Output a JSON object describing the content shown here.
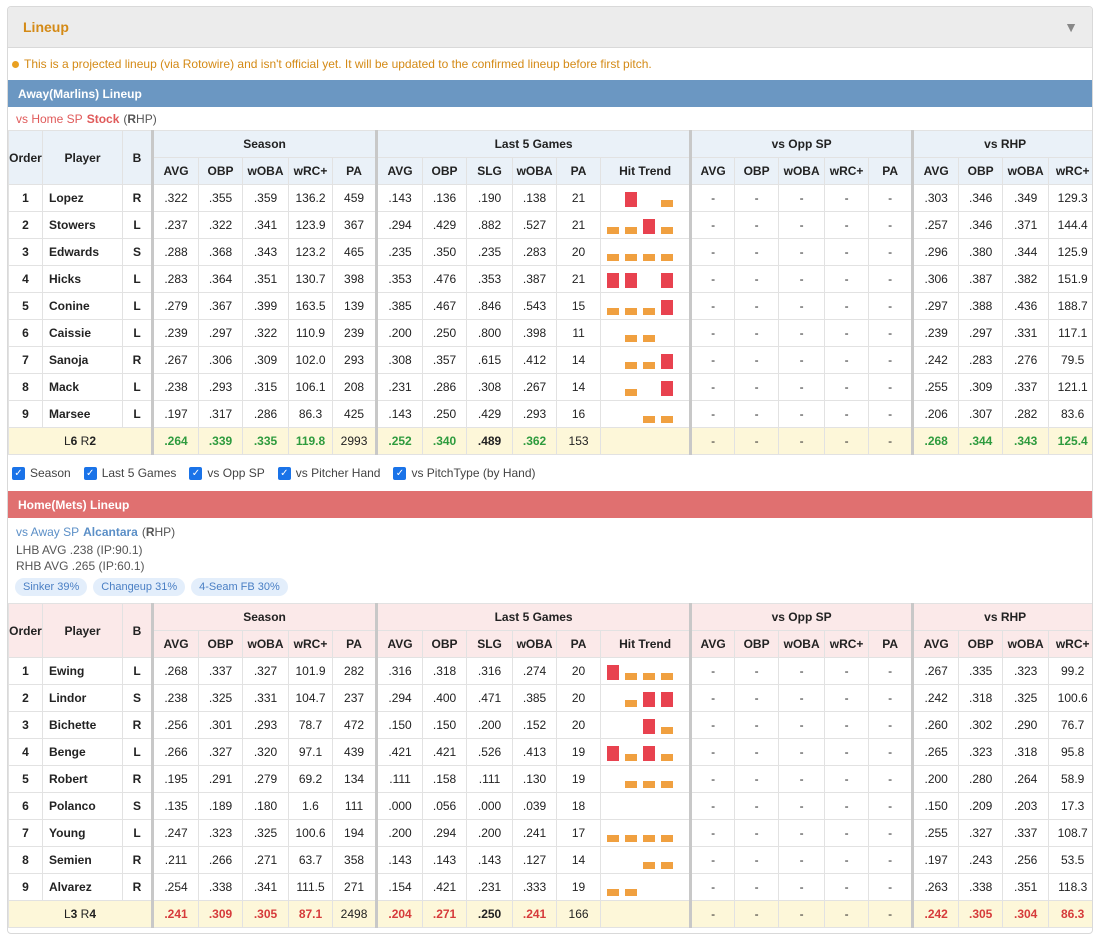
{
  "panel": {
    "title": "Lineup",
    "toggle_icon": "▼"
  },
  "notice": "This is a projected lineup (via Rotowire) and isn't official yet. It will be updated to the confirmed lineup before first pitch.",
  "colors": {
    "accent": "#d48a16",
    "away": "#6b97c2",
    "home": "#e07070",
    "green": "#2e9b3e",
    "red": "#d63b3b",
    "bar_red": "#e8424f",
    "bar_orange": "#f0a040",
    "checkbox": "#1a73e8"
  },
  "group_headers": {
    "season": "Season",
    "last5": "Last 5 Games",
    "opp_sp": "vs Opp SP",
    "vs_hand": "vs RHP"
  },
  "col_headers": {
    "order": "Order",
    "player": "Player",
    "b": "B",
    "season": [
      "AVG",
      "OBP",
      "wOBA",
      "wRC+",
      "PA"
    ],
    "last5": [
      "AVG",
      "OBP",
      "SLG",
      "wOBA",
      "PA",
      "Hit Trend"
    ],
    "opp_sp": [
      "AVG",
      "OBP",
      "wOBA",
      "wRC+",
      "PA"
    ],
    "vs_hand": [
      "AVG",
      "OBP",
      "wOBA",
      "wRC+"
    ]
  },
  "away": {
    "bar_label": "Away(Marlins) Lineup",
    "sp_prefix": "vs Home SP",
    "sp_name": "Stock",
    "sp_hand_open": "(",
    "sp_hand_letter": "R",
    "sp_hand_rest": "HP)",
    "rows": [
      {
        "order": "1",
        "name": "Lopez",
        "b": "R",
        "season": [
          ".322",
          ".355",
          ".359",
          "136.2",
          "459"
        ],
        "last5": [
          ".143",
          ".136",
          ".190",
          ".138",
          "21"
        ],
        "trend": [
          0,
          1,
          0,
          0.5
        ],
        "opp": [
          "-",
          "-",
          "-",
          "-",
          "-"
        ],
        "hand": [
          ".303",
          ".346",
          ".349",
          "129.3"
        ]
      },
      {
        "order": "2",
        "name": "Stowers",
        "b": "L",
        "season": [
          ".237",
          ".322",
          ".341",
          "123.9",
          "367"
        ],
        "last5": [
          ".294",
          ".429",
          ".882",
          ".527",
          "21"
        ],
        "trend": [
          0.5,
          0.5,
          1,
          0.5
        ],
        "opp": [
          "-",
          "-",
          "-",
          "-",
          "-"
        ],
        "hand": [
          ".257",
          ".346",
          ".371",
          "144.4"
        ]
      },
      {
        "order": "3",
        "name": "Edwards",
        "b": "S",
        "season": [
          ".288",
          ".368",
          ".343",
          "123.2",
          "465"
        ],
        "last5": [
          ".235",
          ".350",
          ".235",
          ".283",
          "20"
        ],
        "trend": [
          0.5,
          0.5,
          0.5,
          0.5
        ],
        "opp": [
          "-",
          "-",
          "-",
          "-",
          "-"
        ],
        "hand": [
          ".296",
          ".380",
          ".344",
          "125.9"
        ]
      },
      {
        "order": "4",
        "name": "Hicks",
        "b": "L",
        "season": [
          ".283",
          ".364",
          ".351",
          "130.7",
          "398"
        ],
        "last5": [
          ".353",
          ".476",
          ".353",
          ".387",
          "21"
        ],
        "trend": [
          1,
          1,
          0,
          1
        ],
        "opp": [
          "-",
          "-",
          "-",
          "-",
          "-"
        ],
        "hand": [
          ".306",
          ".387",
          ".382",
          "151.9"
        ]
      },
      {
        "order": "5",
        "name": "Conine",
        "b": "L",
        "season": [
          ".279",
          ".367",
          ".399",
          "163.5",
          "139"
        ],
        "last5": [
          ".385",
          ".467",
          ".846",
          ".543",
          "15"
        ],
        "trend": [
          0.5,
          0.5,
          0.5,
          1
        ],
        "opp": [
          "-",
          "-",
          "-",
          "-",
          "-"
        ],
        "hand": [
          ".297",
          ".388",
          ".436",
          "188.7"
        ]
      },
      {
        "order": "6",
        "name": "Caissie",
        "b": "L",
        "season": [
          ".239",
          ".297",
          ".322",
          "110.9",
          "239"
        ],
        "last5": [
          ".200",
          ".250",
          ".800",
          ".398",
          "11"
        ],
        "trend": [
          0,
          0.5,
          0.5,
          0
        ],
        "opp": [
          "-",
          "-",
          "-",
          "-",
          "-"
        ],
        "hand": [
          ".239",
          ".297",
          ".331",
          "117.1"
        ]
      },
      {
        "order": "7",
        "name": "Sanoja",
        "b": "R",
        "season": [
          ".267",
          ".306",
          ".309",
          "102.0",
          "293"
        ],
        "last5": [
          ".308",
          ".357",
          ".615",
          ".412",
          "14"
        ],
        "trend": [
          0,
          0.5,
          0.5,
          1
        ],
        "opp": [
          "-",
          "-",
          "-",
          "-",
          "-"
        ],
        "hand": [
          ".242",
          ".283",
          ".276",
          "79.5"
        ]
      },
      {
        "order": "8",
        "name": "Mack",
        "b": "L",
        "season": [
          ".238",
          ".293",
          ".315",
          "106.1",
          "208"
        ],
        "last5": [
          ".231",
          ".286",
          ".308",
          ".267",
          "14"
        ],
        "trend": [
          0,
          0.5,
          0,
          1
        ],
        "opp": [
          "-",
          "-",
          "-",
          "-",
          "-"
        ],
        "hand": [
          ".255",
          ".309",
          ".337",
          "121.1"
        ]
      },
      {
        "order": "9",
        "name": "Marsee",
        "b": "L",
        "season": [
          ".197",
          ".317",
          ".286",
          "86.3",
          "425"
        ],
        "last5": [
          ".143",
          ".250",
          ".429",
          ".293",
          "16"
        ],
        "trend": [
          0,
          0,
          0.5,
          0.5
        ],
        "opp": [
          "-",
          "-",
          "-",
          "-",
          "-"
        ],
        "hand": [
          ".206",
          ".307",
          ".282",
          "83.6"
        ]
      }
    ],
    "total": {
      "l_prefix": "L",
      "l_val": "6",
      "r_prefix": " R",
      "r_val": "2",
      "season": [
        ".264",
        ".339",
        ".335",
        "119.8",
        "2993"
      ],
      "last5": [
        ".252",
        ".340",
        ".489",
        ".362",
        "153"
      ],
      "opp": [
        "-",
        "-",
        "-",
        "-",
        "-"
      ],
      "hand": [
        ".268",
        ".344",
        ".343",
        "125.4"
      ]
    }
  },
  "filters": [
    {
      "label": "Season",
      "checked": true
    },
    {
      "label": "Last 5 Games",
      "checked": true
    },
    {
      "label": "vs Opp SP",
      "checked": true
    },
    {
      "label": "vs Pitcher Hand",
      "checked": true
    },
    {
      "label": "vs PitchType (by Hand)",
      "checked": true
    }
  ],
  "home": {
    "bar_label": "Home(Mets) Lineup",
    "sp_prefix": "vs Away SP",
    "sp_name": "Alcantara",
    "sp_hand_open": "(",
    "sp_hand_letter": "R",
    "sp_hand_rest": "HP)",
    "lhb": "LHB AVG .238 (IP:90.1)",
    "rhb": "RHB AVG .265 (IP:60.1)",
    "pitches": [
      "Sinker 39%",
      "Changeup 31%",
      "4-Seam FB 30%"
    ],
    "rows": [
      {
        "order": "1",
        "name": "Ewing",
        "b": "L",
        "season": [
          ".268",
          ".337",
          ".327",
          "101.9",
          "282"
        ],
        "last5": [
          ".316",
          ".318",
          ".316",
          ".274",
          "20"
        ],
        "trend": [
          1,
          0.5,
          0.5,
          0.5
        ],
        "opp": [
          "-",
          "-",
          "-",
          "-",
          "-"
        ],
        "hand": [
          ".267",
          ".335",
          ".323",
          "99.2"
        ]
      },
      {
        "order": "2",
        "name": "Lindor",
        "b": "S",
        "season": [
          ".238",
          ".325",
          ".331",
          "104.7",
          "237"
        ],
        "last5": [
          ".294",
          ".400",
          ".471",
          ".385",
          "20"
        ],
        "trend": [
          0,
          0.5,
          1,
          1
        ],
        "opp": [
          "-",
          "-",
          "-",
          "-",
          "-"
        ],
        "hand": [
          ".242",
          ".318",
          ".325",
          "100.6"
        ]
      },
      {
        "order": "3",
        "name": "Bichette",
        "b": "R",
        "season": [
          ".256",
          ".301",
          ".293",
          "78.7",
          "472"
        ],
        "last5": [
          ".150",
          ".150",
          ".200",
          ".152",
          "20"
        ],
        "trend": [
          0,
          0,
          1,
          0.5
        ],
        "opp": [
          "-",
          "-",
          "-",
          "-",
          "-"
        ],
        "hand": [
          ".260",
          ".302",
          ".290",
          "76.7"
        ]
      },
      {
        "order": "4",
        "name": "Benge",
        "b": "L",
        "season": [
          ".266",
          ".327",
          ".320",
          "97.1",
          "439"
        ],
        "last5": [
          ".421",
          ".421",
          ".526",
          ".413",
          "19"
        ],
        "trend": [
          1,
          0.5,
          1,
          0.5
        ],
        "opp": [
          "-",
          "-",
          "-",
          "-",
          "-"
        ],
        "hand": [
          ".265",
          ".323",
          ".318",
          "95.8"
        ]
      },
      {
        "order": "5",
        "name": "Robert",
        "b": "R",
        "season": [
          ".195",
          ".291",
          ".279",
          "69.2",
          "134"
        ],
        "last5": [
          ".111",
          ".158",
          ".111",
          ".130",
          "19"
        ],
        "trend": [
          0,
          0.5,
          0.5,
          0.5
        ],
        "opp": [
          "-",
          "-",
          "-",
          "-",
          "-"
        ],
        "hand": [
          ".200",
          ".280",
          ".264",
          "58.9"
        ]
      },
      {
        "order": "6",
        "name": "Polanco",
        "b": "S",
        "season": [
          ".135",
          ".189",
          ".180",
          "1.6",
          "111"
        ],
        "last5": [
          ".000",
          ".056",
          ".000",
          ".039",
          "18"
        ],
        "trend": [
          0,
          0,
          0,
          0
        ],
        "opp": [
          "-",
          "-",
          "-",
          "-",
          "-"
        ],
        "hand": [
          ".150",
          ".209",
          ".203",
          "17.3"
        ]
      },
      {
        "order": "7",
        "name": "Young",
        "b": "L",
        "season": [
          ".247",
          ".323",
          ".325",
          "100.6",
          "194"
        ],
        "last5": [
          ".200",
          ".294",
          ".200",
          ".241",
          "17"
        ],
        "trend": [
          0.5,
          0.5,
          0.5,
          0.5
        ],
        "opp": [
          "-",
          "-",
          "-",
          "-",
          "-"
        ],
        "hand": [
          ".255",
          ".327",
          ".337",
          "108.7"
        ]
      },
      {
        "order": "8",
        "name": "Semien",
        "b": "R",
        "season": [
          ".211",
          ".266",
          ".271",
          "63.7",
          "358"
        ],
        "last5": [
          ".143",
          ".143",
          ".143",
          ".127",
          "14"
        ],
        "trend": [
          0,
          0,
          0.5,
          0.5
        ],
        "opp": [
          "-",
          "-",
          "-",
          "-",
          "-"
        ],
        "hand": [
          ".197",
          ".243",
          ".256",
          "53.5"
        ]
      },
      {
        "order": "9",
        "name": "Alvarez",
        "b": "R",
        "season": [
          ".254",
          ".338",
          ".341",
          "111.5",
          "271"
        ],
        "last5": [
          ".154",
          ".421",
          ".231",
          ".333",
          "19"
        ],
        "trend": [
          0.5,
          0.5,
          0,
          0
        ],
        "opp": [
          "-",
          "-",
          "-",
          "-",
          "-"
        ],
        "hand": [
          ".263",
          ".338",
          ".351",
          "118.3"
        ]
      }
    ],
    "total": {
      "l_prefix": "L",
      "l_val": "3",
      "r_prefix": " R",
      "r_val": "4",
      "season": [
        ".241",
        ".309",
        ".305",
        "87.1",
        "2498"
      ],
      "last5": [
        ".204",
        ".271",
        ".250",
        ".241",
        "166"
      ],
      "opp": [
        "-",
        "-",
        "-",
        "-",
        "-"
      ],
      "hand": [
        ".242",
        ".305",
        ".304",
        "86.3"
      ]
    }
  }
}
